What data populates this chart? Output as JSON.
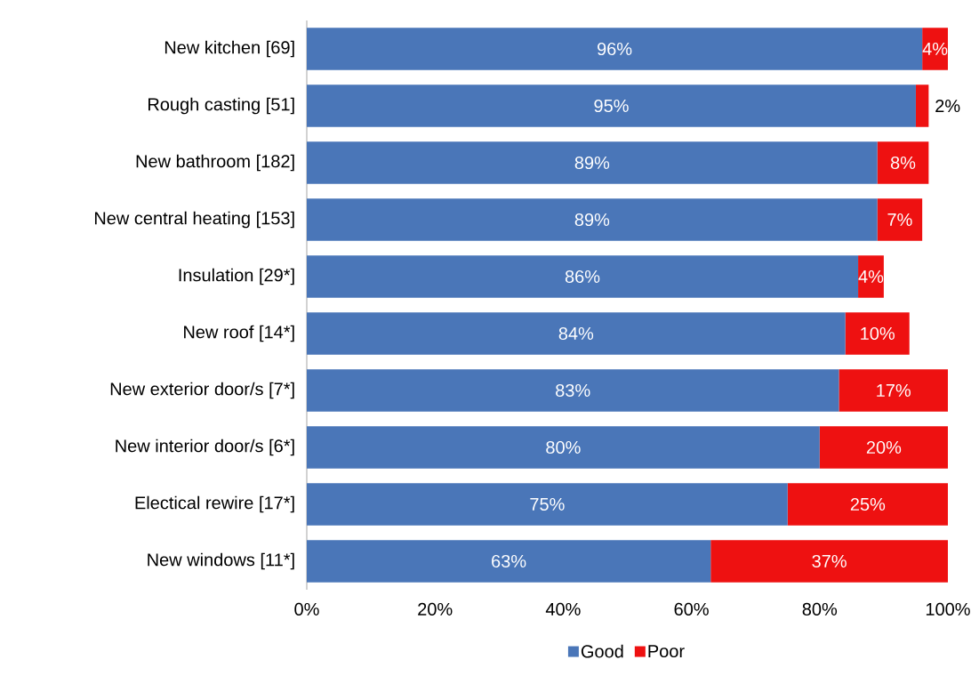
{
  "chart_data": {
    "type": "bar",
    "orientation": "horizontal",
    "stacked": true,
    "categories": [
      "New kitchen [69]",
      "Rough casting [51]",
      "New bathroom [182]",
      "New central heating [153]",
      "Insulation [29*]",
      "New roof [14*]",
      "New exterior door/s [7*]",
      "New interior door/s [6*]",
      "Electical rewire [17*]",
      "New windows [11*]"
    ],
    "series": [
      {
        "name": "Good",
        "color": "#4a76b8",
        "values": [
          96,
          95,
          89,
          89,
          86,
          84,
          83,
          80,
          75,
          63
        ],
        "value_labels": [
          "96%",
          "95%",
          "89%",
          "89%",
          "86%",
          "84%",
          "83%",
          "80%",
          "75%",
          "63%"
        ]
      },
      {
        "name": "Poor",
        "color": "#ee1111",
        "values": [
          4,
          2,
          8,
          7,
          4,
          10,
          17,
          20,
          25,
          37
        ],
        "value_labels": [
          "4%",
          "2%",
          "8%",
          "7%",
          "4%",
          "10%",
          "17%",
          "20%",
          "25%",
          "37%"
        ]
      }
    ],
    "xlim": [
      0,
      100
    ],
    "xticks": [
      {
        "value": 0,
        "label": "0%"
      },
      {
        "value": 20,
        "label": "20%"
      },
      {
        "value": 40,
        "label": "40%"
      },
      {
        "value": 60,
        "label": "60%"
      },
      {
        "value": 80,
        "label": "80%"
      },
      {
        "value": 100,
        "label": "100%"
      }
    ],
    "legend": "bottom"
  }
}
